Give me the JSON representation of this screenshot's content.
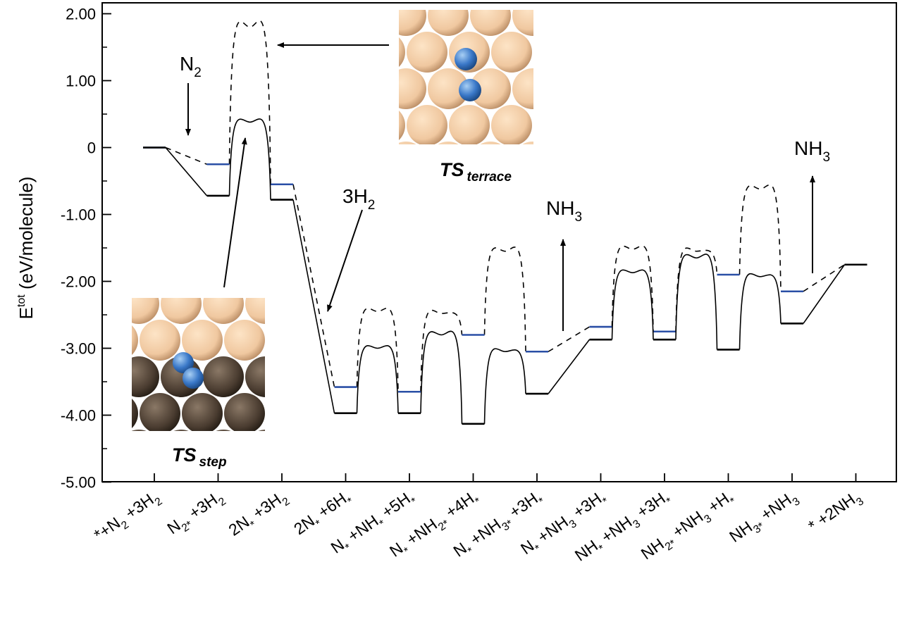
{
  "chart_data": {
    "type": "line",
    "ylabel": {
      "main": "E",
      "sup": "tot",
      "rest": " (eV/molecule)"
    },
    "ylim": [
      -5.0,
      2.15
    ],
    "yticks": [
      {
        "value": 2.0,
        "label": "2.00"
      },
      {
        "value": 1.0,
        "label": "1.00"
      },
      {
        "value": 0.0,
        "label": "0"
      },
      {
        "value": -1.0,
        "label": "-1.00"
      },
      {
        "value": -2.0,
        "label": "-2.00"
      },
      {
        "value": -3.0,
        "label": "-3.00"
      },
      {
        "value": -4.0,
        "label": "-4.00"
      },
      {
        "value": -5.0,
        "label": "-5.00"
      }
    ],
    "categories": [
      "*+N2 +3H2",
      "N2* +3H2",
      "2N* +3H2",
      "2N* +6H*",
      "N* +NH* +5H*",
      "N* +NH2* +4H*",
      "N* +NH3* +3H*",
      "N* +NH3 +3H*",
      "NH* +NH3 +3H*",
      "NH2* +NH3 +H*",
      "NH3* +NH3",
      "* +2NH3"
    ],
    "category_labels": [
      [
        {
          "t": "*",
          "s": "none"
        },
        {
          "t": "+N",
          "s": "none"
        },
        {
          "t": "2",
          "s": "sub"
        },
        {
          "t": " +3H",
          "s": "none"
        },
        {
          "t": "2",
          "s": "sub"
        }
      ],
      [
        {
          "t": "N",
          "s": "none"
        },
        {
          "t": "2*",
          "s": "sub"
        },
        {
          "t": " +3H",
          "s": "none"
        },
        {
          "t": "2",
          "s": "sub"
        }
      ],
      [
        {
          "t": "2N",
          "s": "none"
        },
        {
          "t": "*",
          "s": "sub"
        },
        {
          "t": " +3H",
          "s": "none"
        },
        {
          "t": "2",
          "s": "sub"
        }
      ],
      [
        {
          "t": "2N",
          "s": "none"
        },
        {
          "t": "*",
          "s": "sub"
        },
        {
          "t": " +6H",
          "s": "none"
        },
        {
          "t": "*",
          "s": "sub"
        }
      ],
      [
        {
          "t": "N",
          "s": "none"
        },
        {
          "t": "*",
          "s": "sub"
        },
        {
          "t": " +NH",
          "s": "none"
        },
        {
          "t": "*",
          "s": "sub"
        },
        {
          "t": " +5H",
          "s": "none"
        },
        {
          "t": "*",
          "s": "sub"
        }
      ],
      [
        {
          "t": "N",
          "s": "none"
        },
        {
          "t": "*",
          "s": "sub"
        },
        {
          "t": " +NH",
          "s": "none"
        },
        {
          "t": "2*",
          "s": "sub"
        },
        {
          "t": " +4H",
          "s": "none"
        },
        {
          "t": "*",
          "s": "sub"
        }
      ],
      [
        {
          "t": "N",
          "s": "none"
        },
        {
          "t": "*",
          "s": "sub"
        },
        {
          "t": " +NH",
          "s": "none"
        },
        {
          "t": "3*",
          "s": "sub"
        },
        {
          "t": " +3H",
          "s": "none"
        },
        {
          "t": "*",
          "s": "sub"
        }
      ],
      [
        {
          "t": "N",
          "s": "none"
        },
        {
          "t": "*",
          "s": "sub"
        },
        {
          "t": " +NH",
          "s": "none"
        },
        {
          "t": "3",
          "s": "sub"
        },
        {
          "t": " +3H",
          "s": "none"
        },
        {
          "t": "*",
          "s": "sub"
        }
      ],
      [
        {
          "t": "NH",
          "s": "none"
        },
        {
          "t": "*",
          "s": "sub"
        },
        {
          "t": " +NH",
          "s": "none"
        },
        {
          "t": "3",
          "s": "sub"
        },
        {
          "t": " +3H",
          "s": "none"
        },
        {
          "t": "*",
          "s": "sub"
        }
      ],
      [
        {
          "t": "NH",
          "s": "none"
        },
        {
          "t": "2*",
          "s": "sub"
        },
        {
          "t": " +NH",
          "s": "none"
        },
        {
          "t": "3",
          "s": "sub"
        },
        {
          "t": " +H",
          "s": "none"
        },
        {
          "t": "*",
          "s": "sub"
        }
      ],
      [
        {
          "t": "NH",
          "s": "none"
        },
        {
          "t": "3*",
          "s": "sub"
        },
        {
          "t": " +NH",
          "s": "none"
        },
        {
          "t": "3",
          "s": "sub"
        }
      ],
      [
        {
          "t": "* ",
          "s": "none"
        },
        {
          "t": "+2NH",
          "s": "none"
        },
        {
          "t": "3",
          "s": "sub"
        }
      ]
    ],
    "series": [
      {
        "line_style": "dashed",
        "level_color": "#2a4fa6",
        "levels": [
          0.0,
          -0.25,
          -0.55,
          -3.58,
          -3.65,
          -2.8,
          -3.05,
          -2.68,
          -2.75,
          -1.9,
          -2.15,
          -1.75
        ],
        "barriers": [
          {
            "from": 1,
            "to": 2,
            "peak": 1.8
          },
          {
            "from": 3,
            "to": 4,
            "peak": -2.45
          },
          {
            "from": 4,
            "to": 5,
            "peak": -2.48
          },
          {
            "from": 5,
            "to": 6,
            "peak": -1.55
          },
          {
            "from": 7,
            "to": 8,
            "peak": -1.52
          },
          {
            "from": 8,
            "to": 9,
            "peak": -1.55
          },
          {
            "from": 9,
            "to": 10,
            "peak": -0.62
          }
        ]
      },
      {
        "line_style": "solid",
        "level_color": "#000000",
        "levels": [
          0.0,
          -0.72,
          -0.78,
          -3.97,
          -3.97,
          -4.13,
          -3.68,
          -2.87,
          -2.87,
          -3.02,
          -2.63,
          -1.75
        ],
        "barriers": [
          {
            "from": 1,
            "to": 2,
            "peak": 0.38
          },
          {
            "from": 3,
            "to": 4,
            "peak": -3.0
          },
          {
            "from": 4,
            "to": 5,
            "peak": -2.8
          },
          {
            "from": 5,
            "to": 6,
            "peak": -3.05
          },
          {
            "from": 7,
            "to": 8,
            "peak": -1.87
          },
          {
            "from": 8,
            "to": 9,
            "peak": -1.65
          },
          {
            "from": 9,
            "to": 10,
            "peak": -1.93
          }
        ]
      }
    ],
    "annotations": [
      {
        "parts": [
          {
            "t": "N",
            "s": "none"
          },
          {
            "t": "2",
            "s": "sub"
          }
        ],
        "arrow": "down"
      },
      {
        "parts": [
          {
            "t": "3H",
            "s": "none"
          },
          {
            "t": "2",
            "s": "sub"
          }
        ],
        "arrow": "diagonal"
      },
      {
        "parts": [
          {
            "t": "NH",
            "s": "none"
          },
          {
            "t": "3",
            "s": "sub"
          }
        ],
        "arrow": "up"
      },
      {
        "parts": [
          {
            "t": "NH",
            "s": "none"
          },
          {
            "t": "3",
            "s": "sub"
          }
        ],
        "arrow": "up"
      }
    ],
    "insets": [
      {
        "label_main": "TS",
        "label_sub": "terrace",
        "surface": "terrace"
      },
      {
        "label_main": "TS",
        "label_sub": "step",
        "surface": "step"
      }
    ]
  },
  "colors": {
    "atom_light": "#f0c8a0",
    "atom_dark": "#4a3c30",
    "adsorbate": "#3a78c8"
  }
}
